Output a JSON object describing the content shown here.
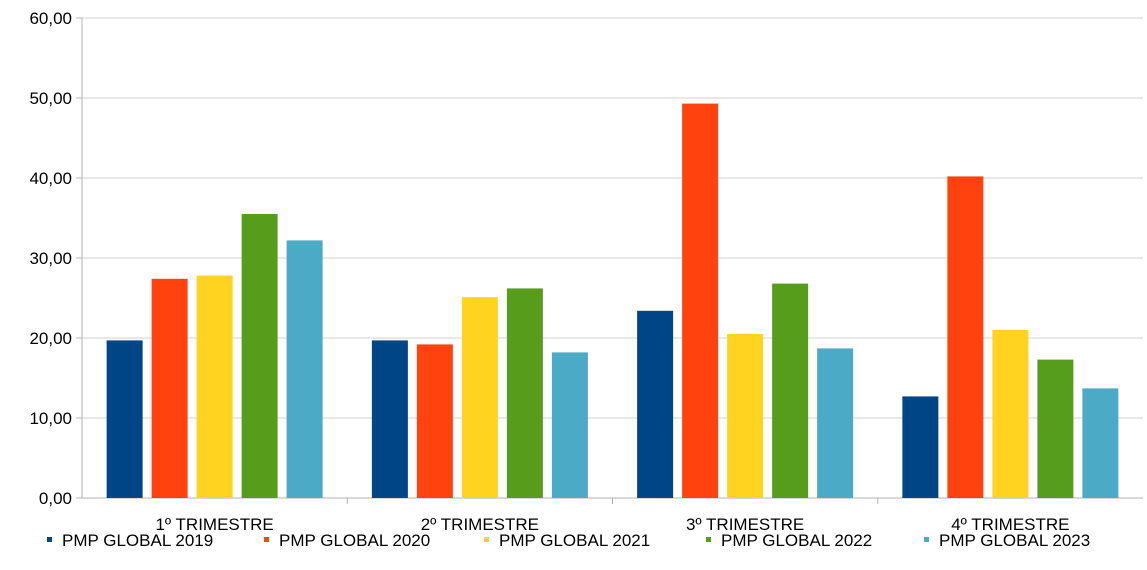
{
  "chart_data": {
    "type": "bar",
    "title": "",
    "xlabel": "",
    "ylabel": "",
    "ylim": [
      0,
      60
    ],
    "yticks": [
      "0,00",
      "10,00",
      "20,00",
      "30,00",
      "40,00",
      "50,00",
      "60,00"
    ],
    "grid": true,
    "legend_position": "bottom",
    "categories": [
      "1º TRIMESTRE",
      "2º TRIMESTRE",
      "3º TRIMESTRE",
      "4º TRIMESTRE"
    ],
    "series": [
      {
        "name": "PMP GLOBAL 2019",
        "color": "#004586",
        "values": [
          19.7,
          19.7,
          23.4,
          12.7
        ]
      },
      {
        "name": "PMP GLOBAL 2020",
        "color": "#FF420E",
        "values": [
          27.4,
          19.2,
          49.3,
          40.2
        ]
      },
      {
        "name": "PMP GLOBAL 2021",
        "color": "#FFD320",
        "values": [
          27.8,
          25.1,
          20.5,
          21.0
        ]
      },
      {
        "name": "PMP GLOBAL 2022",
        "color": "#579D1C",
        "values": [
          35.5,
          26.2,
          26.8,
          17.3
        ]
      },
      {
        "name": "PMP GLOBAL 2023",
        "color": "#4BAAC6",
        "values": [
          32.2,
          18.2,
          18.7,
          13.7
        ]
      }
    ]
  }
}
